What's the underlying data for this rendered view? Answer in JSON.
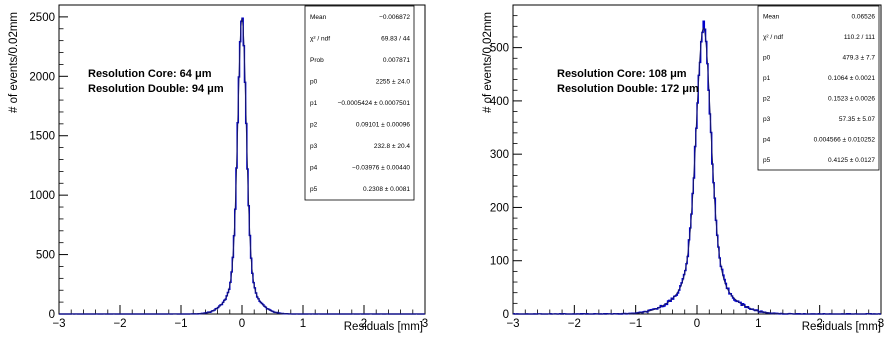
{
  "chart_data": [
    {
      "type": "histogram",
      "xlabel": "Residuals [mm]",
      "ylabel": "# of events/0.02mm",
      "xlim": [
        -3,
        3
      ],
      "ylim": [
        0,
        2600
      ],
      "xticks": [
        -3,
        -2,
        -1,
        0,
        1,
        2,
        3
      ],
      "xtick_labels": [
        "−3",
        "−2",
        "−1",
        "0",
        "1",
        "2",
        "3"
      ],
      "yticks": [
        0,
        500,
        1000,
        1500,
        2000,
        2500
      ],
      "ytick_labels": [
        "0",
        "500",
        "1000",
        "1500",
        "2000",
        "2500"
      ],
      "annotations": [
        "Resolution Core: 64 μm",
        "Resolution Double: 94 μm"
      ],
      "line_color": "#0000cc",
      "fit_color": "#1a1a66",
      "fit_model": {
        "norm": 2255,
        "mean": 0.0,
        "sigma_core": 0.064,
        "sigma_double": 0.094,
        "tail_norm": 232.8,
        "tail_sigma": 0.2308
      },
      "stats": [
        {
          "key": "Mean",
          "value": "−0.006872"
        },
        {
          "key": "χ² / ndf",
          "value": "69.83 / 44"
        },
        {
          "key": "Prob",
          "value": "0.007871"
        },
        {
          "key": "p0",
          "value": "2255 ± 24.0"
        },
        {
          "key": "p1",
          "value": "−0.0005424 ± 0.0007501"
        },
        {
          "key": "p2",
          "value": "0.09101 ± 0.00096"
        },
        {
          "key": "p3",
          "value": "232.8 ± 20.4"
        },
        {
          "key": "p4",
          "value": "−0.03976 ± 0.00440"
        },
        {
          "key": "p5",
          "value": "0.2308 ± 0.0081"
        }
      ]
    },
    {
      "type": "histogram",
      "xlabel": "Residuals [mm]",
      "ylabel": "# of events/0.02mm",
      "xlim": [
        -3,
        3
      ],
      "ylim": [
        0,
        580
      ],
      "xticks": [
        -3,
        -2,
        -1,
        0,
        1,
        2,
        3
      ],
      "xtick_labels": [
        "−3",
        "−2",
        "−1",
        "0",
        "1",
        "2",
        "3"
      ],
      "yticks": [
        0,
        100,
        200,
        300,
        400,
        500
      ],
      "ytick_labels": [
        "0",
        "100",
        "200",
        "300",
        "400",
        "500"
      ],
      "annotations": [
        "Resolution Core: 108 μm",
        "Resolution Double: 172 μm"
      ],
      "line_color": "#0000cc",
      "fit_color": "#1a1a66",
      "fit_model": {
        "norm": 479.3,
        "mean": 0.1064,
        "sigma_core": 0.108,
        "sigma_double": 0.172,
        "tail_norm": 57.35,
        "tail_sigma": 0.4125
      },
      "stats": [
        {
          "key": "Mean",
          "value": "0.06526"
        },
        {
          "key": "χ² / ndf",
          "value": "110.2 / 111"
        },
        {
          "key": "p0",
          "value": "479.3 ± 7.7"
        },
        {
          "key": "p1",
          "value": "0.1064 ± 0.0021"
        },
        {
          "key": "p2",
          "value": "0.1523 ± 0.0026"
        },
        {
          "key": "p3",
          "value": "57.35 ± 5.07"
        },
        {
          "key": "p4",
          "value": "0.004566 ± 0.010252"
        },
        {
          "key": "p5",
          "value": "0.4125 ± 0.0127"
        }
      ]
    }
  ]
}
